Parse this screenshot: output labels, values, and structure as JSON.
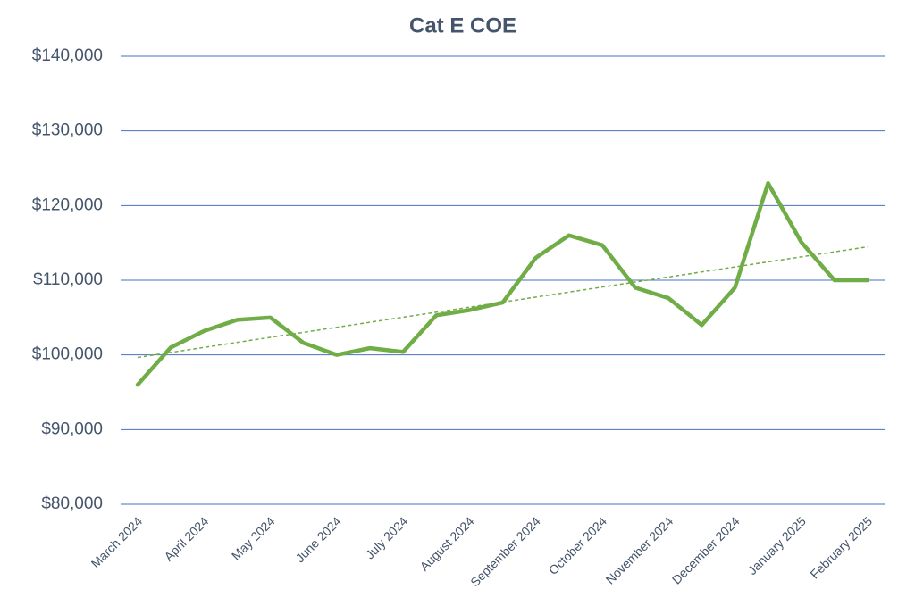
{
  "chart_data": {
    "type": "line",
    "title": "Cat E COE",
    "categories": [
      "March 2024",
      null,
      "April 2024",
      null,
      "May 2024",
      null,
      "June 2024",
      null,
      "July 2024",
      null,
      "August 2024",
      null,
      "September 2024",
      null,
      "October 2024",
      null,
      "November 2024",
      null,
      "December 2024",
      null,
      "January 2025",
      null,
      "February 2025"
    ],
    "series": [
      {
        "name": "Cat E COE",
        "color": "#70ad47",
        "values": [
          96000,
          101000,
          103200,
          104700,
          105000,
          101600,
          100000,
          100900,
          100400,
          105300,
          106000,
          107000,
          113000,
          116000,
          114700,
          109000,
          107600,
          104000,
          109000,
          123000,
          115100,
          110000,
          110000
        ]
      }
    ],
    "ylim": [
      80000,
      140000
    ],
    "yticks": [
      {
        "value": 80000,
        "label": "$80,000"
      },
      {
        "value": 90000,
        "label": "$90,000"
      },
      {
        "value": 100000,
        "label": "$100,000"
      },
      {
        "value": 110000,
        "label": "$110,000"
      },
      {
        "value": 120000,
        "label": "$120,000"
      },
      {
        "value": 130000,
        "label": "$130,000"
      },
      {
        "value": 140000,
        "label": "$140,000"
      }
    ],
    "grid": true,
    "grid_color": "#4472c4",
    "trendline": true,
    "trendline_color": "#70ad47"
  }
}
